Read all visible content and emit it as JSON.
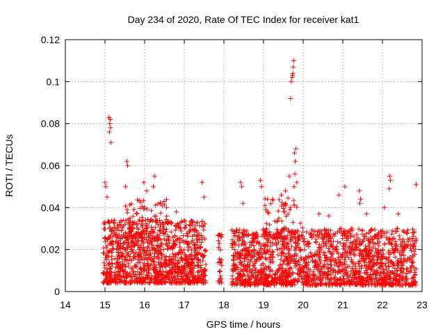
{
  "chart_data": {
    "type": "scatter",
    "title": "Day 234 of 2020, Rate Of TEC Index for receiver kat1",
    "xlabel": "GPS time / hours",
    "ylabel": "ROTI / TECUs",
    "xlim": [
      14,
      23
    ],
    "ylim": [
      0,
      0.12
    ],
    "x_ticks": [
      "14",
      "15",
      "16",
      "17",
      "18",
      "19",
      "20",
      "21",
      "22",
      "23"
    ],
    "y_ticks": [
      "0",
      "0.02",
      "0.04",
      "0.06",
      "0.08",
      "0.1",
      "0.12"
    ],
    "grid": true,
    "marker": "+",
    "color": "#ff0000",
    "density_bands": [
      {
        "x_start": 14.95,
        "x_end": 17.55,
        "y_min": 0.004,
        "y_max": 0.034,
        "points": 1100
      },
      {
        "x_start": 15.5,
        "x_end": 16.6,
        "y_min": 0.025,
        "y_max": 0.044,
        "points": 90
      },
      {
        "x_start": 17.85,
        "x_end": 17.95,
        "y_min": 0.004,
        "y_max": 0.028,
        "points": 30
      },
      {
        "x_start": 18.2,
        "x_end": 22.85,
        "y_min": 0.003,
        "y_max": 0.03,
        "points": 1700
      },
      {
        "x_start": 19.0,
        "x_end": 20.0,
        "y_min": 0.025,
        "y_max": 0.045,
        "points": 80
      }
    ],
    "outliers": [
      {
        "x": 15.0,
        "y": 0.052
      },
      {
        "x": 15.02,
        "y": 0.05
      },
      {
        "x": 15.05,
        "y": 0.045
      },
      {
        "x": 15.1,
        "y": 0.083
      },
      {
        "x": 15.12,
        "y": 0.08
      },
      {
        "x": 15.14,
        "y": 0.078
      },
      {
        "x": 15.11,
        "y": 0.076
      },
      {
        "x": 15.13,
        "y": 0.082
      },
      {
        "x": 15.15,
        "y": 0.071
      },
      {
        "x": 15.55,
        "y": 0.062
      },
      {
        "x": 15.57,
        "y": 0.06
      },
      {
        "x": 15.52,
        "y": 0.05
      },
      {
        "x": 15.98,
        "y": 0.052
      },
      {
        "x": 16.05,
        "y": 0.048
      },
      {
        "x": 16.25,
        "y": 0.055
      },
      {
        "x": 16.22,
        "y": 0.05
      },
      {
        "x": 17.45,
        "y": 0.052
      },
      {
        "x": 17.5,
        "y": 0.045
      },
      {
        "x": 18.42,
        "y": 0.052
      },
      {
        "x": 18.45,
        "y": 0.05
      },
      {
        "x": 18.48,
        "y": 0.042
      },
      {
        "x": 18.92,
        "y": 0.053
      },
      {
        "x": 18.95,
        "y": 0.05
      },
      {
        "x": 19.1,
        "y": 0.044
      },
      {
        "x": 19.45,
        "y": 0.046
      },
      {
        "x": 19.55,
        "y": 0.048
      },
      {
        "x": 19.65,
        "y": 0.055
      },
      {
        "x": 19.68,
        "y": 0.092
      },
      {
        "x": 19.7,
        "y": 0.1
      },
      {
        "x": 19.72,
        "y": 0.102
      },
      {
        "x": 19.74,
        "y": 0.104
      },
      {
        "x": 19.75,
        "y": 0.107
      },
      {
        "x": 19.76,
        "y": 0.11
      },
      {
        "x": 19.73,
        "y": 0.103
      },
      {
        "x": 19.78,
        "y": 0.066
      },
      {
        "x": 19.8,
        "y": 0.062
      },
      {
        "x": 19.82,
        "y": 0.068
      },
      {
        "x": 19.79,
        "y": 0.056
      },
      {
        "x": 19.77,
        "y": 0.05
      },
      {
        "x": 19.84,
        "y": 0.052
      },
      {
        "x": 20.4,
        "y": 0.037
      },
      {
        "x": 20.9,
        "y": 0.046
      },
      {
        "x": 21.05,
        "y": 0.05
      },
      {
        "x": 21.42,
        "y": 0.048
      },
      {
        "x": 21.45,
        "y": 0.044
      },
      {
        "x": 21.43,
        "y": 0.042
      },
      {
        "x": 22.18,
        "y": 0.055
      },
      {
        "x": 22.2,
        "y": 0.053
      },
      {
        "x": 22.17,
        "y": 0.049
      },
      {
        "x": 22.05,
        "y": 0.04
      },
      {
        "x": 22.85,
        "y": 0.051
      },
      {
        "x": 21.6,
        "y": 0.037
      },
      {
        "x": 20.65,
        "y": 0.036
      },
      {
        "x": 22.4,
        "y": 0.037
      },
      {
        "x": 16.55,
        "y": 0.04
      },
      {
        "x": 16.8,
        "y": 0.038
      },
      {
        "x": 16.4,
        "y": 0.042
      }
    ]
  }
}
